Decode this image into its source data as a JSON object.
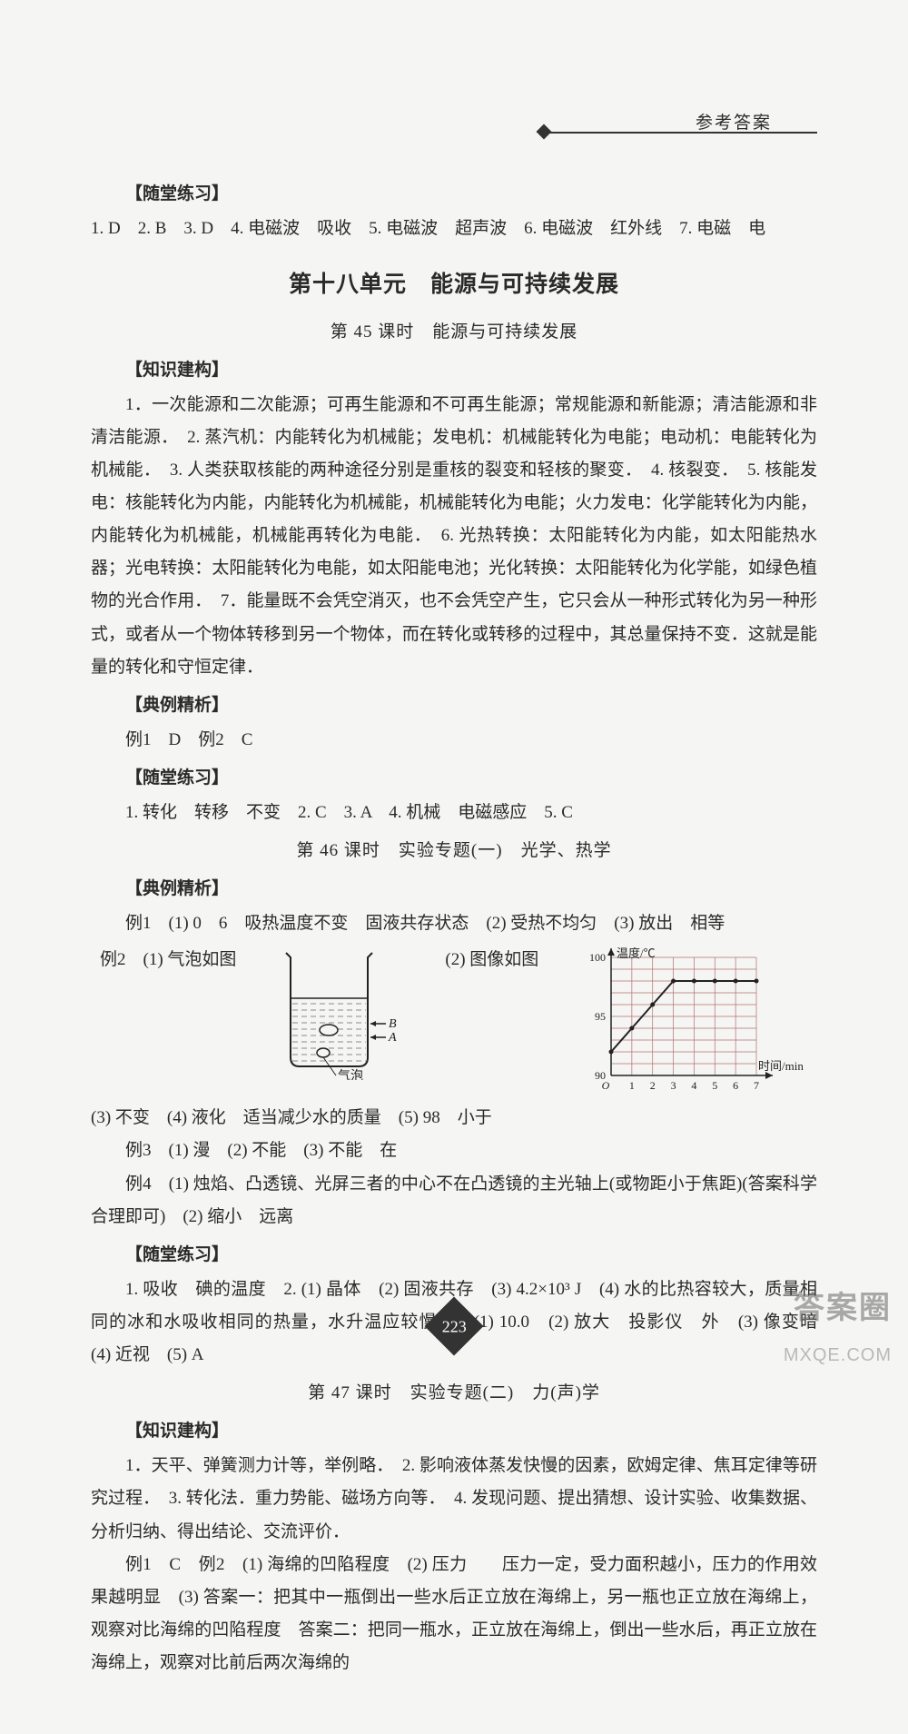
{
  "header": {
    "label": "参考答案"
  },
  "page_number": "223",
  "watermark": {
    "line1": "答案圈",
    "line2": "MXQE.COM"
  },
  "block_a": {
    "heading": "【随堂练习】",
    "line": "1. D　2. B　3. D　4. 电磁波　吸收　5. 电磁波　超声波　6. 电磁波　红外线　7. 电磁　电"
  },
  "unit18": {
    "title": "第十八单元　能源与可持续发展",
    "lesson45": {
      "title": "第 45 课时　能源与可持续发展",
      "kb_heading": "【知识建构】",
      "kb_text": "1．一次能源和二次能源；可再生能源和不可再生能源；常规能源和新能源；清洁能源和非清洁能源．　2. 蒸汽机：内能转化为机械能；发电机：机械能转化为电能；电动机：电能转化为机械能．　3. 人类获取核能的两种途径分别是重核的裂变和轻核的聚变．　4. 核裂变．　5. 核能发电：核能转化为内能，内能转化为机械能，机械能转化为电能；火力发电：化学能转化为内能，内能转化为机械能，机械能再转化为电能．　6. 光热转换：太阳能转化为内能，如太阳能热水器；光电转换：太阳能转化为电能，如太阳能电池；光化转换：太阳能转化为化学能，如绿色植物的光合作用．　7．能量既不会凭空消灭，也不会凭空产生，它只会从一种形式转化为另一种形式，或者从一个物体转移到另一个物体，而在转化或转移的过程中，其总量保持不变．这就是能量的转化和守恒定律．",
      "ex_heading": "【典例精析】",
      "ex_line": "例1　D　例2　C",
      "pr_heading": "【随堂练习】",
      "pr_line": "1. 转化　转移　不变　2. C　3. A　4. 机械　电磁感应　5. C"
    },
    "lesson46": {
      "title": "第 46 课时　实验专题(一)　光学、热学",
      "ex_heading": "【典例精析】",
      "ex1": "例1　(1) 0　6　吸热温度不变　固液共存状态　(2) 受热不均匀　(3) 放出　相等",
      "ex2_prefix": "例2　(1) 气泡如图",
      "ex2_mid": "(2) 图像如图",
      "ex2_after": "(3) 不变　(4) 液化　适当减少水的质量　(5) 98　小于",
      "ex3": "例3　(1) 漫　(2) 不能　(3) 不能　在",
      "ex4": "例4　(1) 烛焰、凸透镜、光屏三者的中心不在凸透镜的主光轴上(或物距小于焦距)(答案科学合理即可)　(2) 缩小　远离",
      "pr_heading": "【随堂练习】",
      "pr_text": "1. 吸收　碘的温度　2. (1) 晶体　(2) 固液共存　(3) 4.2×10³ J　(4) 水的比热容较大，质量相同的冰和水吸收相同的热量，水升温应较慢　3. (1) 10.0　(2) 放大　投影仪　外　(3) 像变暗　(4) 近视　(5) A",
      "beaker": {
        "labels": {
          "B": "B",
          "A": "A",
          "bubble": "气泡"
        },
        "stroke": "#222222",
        "fill_bg": "#f5f5f3"
      },
      "chart": {
        "type": "line",
        "xlabel": "时间/min",
        "ylabel": "温度/℃",
        "xlim": [
          0,
          7
        ],
        "ylim": [
          90,
          100
        ],
        "xticks": [
          "O",
          "1",
          "2",
          "3",
          "4",
          "5",
          "6",
          "7"
        ],
        "yticks": [
          "90",
          "95",
          "100"
        ],
        "grid_color": "#b07070",
        "axis_color": "#222222",
        "line_color": "#222222",
        "background_color": "#f5f5f3",
        "points_x": [
          0,
          1,
          2,
          3,
          4,
          5,
          6,
          7
        ],
        "points_y": [
          92,
          94,
          96,
          98,
          98,
          98,
          98,
          98
        ]
      }
    },
    "lesson47": {
      "title": "第 47 课时　实验专题(二)　力(声)学",
      "kb_heading": "【知识建构】",
      "kb_text": "1．天平、弹簧测力计等，举例略．　2. 影响液体蒸发快慢的因素，欧姆定律、焦耳定律等研究过程．　3. 转化法．重力势能、磁场方向等．　4. 发现问题、提出猜想、设计实验、收集数据、分析归纳、得出结论、交流评价．",
      "ex_text": "例1　C　例2　(1) 海绵的凹陷程度　(2) 压力　　压力一定，受力面积越小，压力的作用效果越明显　(3) 答案一：把其中一瓶倒出一些水后正立放在海绵上，另一瓶也正立放在海绵上，观察对比海绵的凹陷程度　答案二：把同一瓶水，正立放在海绵上，倒出一些水后，再正立放在海绵上，观察对比前后两次海绵的"
    }
  }
}
